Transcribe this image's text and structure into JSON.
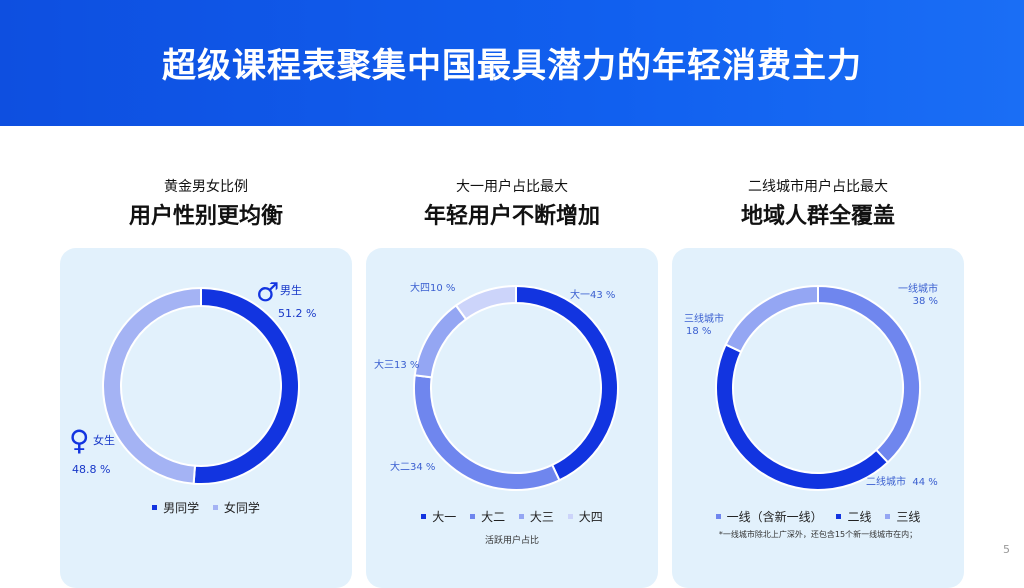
{
  "title": "超级课程表聚集中国最具潜力的年轻消费主力",
  "page_number": "5",
  "panels": [
    {
      "subtitle": "黄金男女比例",
      "headline": "用户性别更均衡"
    },
    {
      "subtitle": "大一用户占比最大",
      "headline": "年轻用户不断增加"
    },
    {
      "subtitle": "二线城市用户占比最大",
      "headline": "地域人群全覆盖"
    }
  ],
  "chart_data": [
    {
      "type": "pie",
      "variant": "donut",
      "categories": [
        "男同学",
        "女同学"
      ],
      "values": [
        51.2,
        48.8
      ],
      "unit": "%",
      "colors": [
        "#1234e0",
        "#a4b3f4"
      ],
      "labels": {
        "male_name": "男生",
        "male_value": "51.2 %",
        "female_name": "女生",
        "female_value": "48.8 %"
      },
      "legend": [
        "男同学",
        "女同学"
      ],
      "legend_position": "bottom"
    },
    {
      "type": "pie",
      "variant": "donut",
      "categories": [
        "大一",
        "大二",
        "大三",
        "大四"
      ],
      "values": [
        43,
        34,
        13,
        10
      ],
      "unit": "%",
      "colors": [
        "#1234e0",
        "#6f86ee",
        "#94a6f3",
        "#ccd4fa"
      ],
      "labels": {
        "y1": "大一43 %",
        "y2": "大二34 %",
        "y3": "大三13 %",
        "y4": "大四10 %"
      },
      "legend": [
        "大一",
        "大二",
        "大三",
        "大四"
      ],
      "legend_position": "bottom",
      "note": "活跃用户占比"
    },
    {
      "type": "pie",
      "variant": "donut",
      "categories": [
        "一线城市",
        "二线城市",
        "三线城市"
      ],
      "values": [
        38,
        44,
        18
      ],
      "unit": "%",
      "colors": [
        "#6f86ee",
        "#1234e0",
        "#94a6f3"
      ],
      "labels": {
        "t1_name": "一线城市",
        "t1_value": "38 %",
        "t2": "二线城市  44 %",
        "t3_name": "三线城市",
        "t3_value": "18 %"
      },
      "legend": [
        "一线（含新一线）",
        "二线",
        "三线"
      ],
      "legend_position": "bottom",
      "note": "*一线城市除北上广深外，还包含15个新一线城市在内；"
    }
  ]
}
